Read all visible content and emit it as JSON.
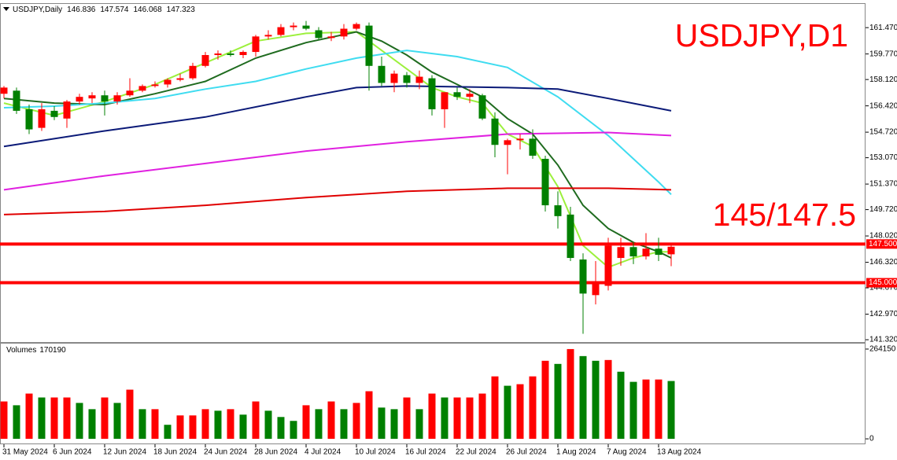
{
  "chart_data": {
    "type": "candlestick",
    "symbol": "USDJPY,Daily",
    "title": "USDJPY,D1",
    "annotation": "145/147.5",
    "categories": [
      "31 May 2024",
      null,
      null,
      null,
      "6 Jun 2024",
      null,
      null,
      null,
      "12 Jun 2024",
      null,
      null,
      null,
      "18 Jun 2024",
      null,
      null,
      null,
      "24 Jun 2024",
      null,
      null,
      null,
      "28 Jun 2024",
      null,
      null,
      null,
      "4 Jul 2024",
      null,
      null,
      null,
      "10 Jul 2024",
      null,
      null,
      null,
      "16 Jul 2024",
      null,
      null,
      null,
      "22 Jul 2024",
      null,
      null,
      null,
      "26 Jul 2024",
      null,
      null,
      null,
      "1 Aug 2024",
      null,
      null,
      null,
      "7 Aug 2024",
      null,
      null,
      null,
      "13 Aug 2024",
      null
    ],
    "open": [
      157.2,
      157.4,
      156.2,
      155.0,
      156.1,
      155.6,
      156.7,
      156.9,
      157.1,
      156.7,
      157.1,
      157.4,
      157.7,
      157.8,
      158.1,
      158.2,
      159.0,
      159.7,
      159.8,
      159.7,
      159.9,
      160.9,
      161.0,
      161.5,
      161.6,
      161.3,
      160.8,
      160.9,
      161.4,
      161.6,
      159.0,
      157.9,
      158.4,
      157.9,
      158.2,
      156.2,
      157.3,
      157.0,
      157.1,
      155.6,
      153.9,
      154.2,
      154.3,
      153.0,
      150.0,
      149.4,
      146.5,
      144.2,
      144.8,
      146.6,
      147.3,
      146.7,
      147.2,
      146.836
    ],
    "high": [
      157.7,
      157.6,
      156.5,
      156.6,
      156.4,
      156.8,
      157.2,
      157.3,
      157.4,
      157.3,
      158.2,
      157.8,
      158.0,
      158.2,
      158.5,
      159.2,
      159.9,
      160.0,
      160.0,
      160.0,
      161.0,
      161.3,
      161.7,
      161.8,
      161.9,
      161.5,
      161.2,
      161.7,
      161.8,
      161.8,
      159.6,
      158.7,
      158.6,
      158.7,
      158.4,
      157.3,
      157.6,
      157.5,
      157.2,
      156.0,
      154.3,
      154.6,
      154.9,
      153.2,
      150.9,
      149.9,
      146.9,
      146.4,
      147.9,
      147.9,
      147.6,
      148.2,
      147.9,
      147.574
    ],
    "low": [
      156.9,
      155.9,
      154.6,
      154.8,
      155.5,
      155.0,
      156.5,
      156.6,
      155.8,
      156.5,
      157.0,
      157.3,
      157.6,
      157.6,
      158.0,
      158.1,
      158.9,
      159.4,
      159.6,
      159.5,
      159.6,
      160.7,
      160.9,
      161.3,
      161.3,
      160.7,
      160.6,
      160.7,
      161.3,
      157.4,
      157.7,
      157.3,
      157.6,
      157.5,
      155.8,
      155.0,
      156.8,
      156.6,
      155.5,
      153.1,
      152.0,
      153.6,
      153.0,
      149.6,
      148.5,
      146.4,
      141.7,
      143.6,
      144.5,
      146.1,
      146.2,
      146.5,
      146.4,
      146.068
    ],
    "close": [
      157.6,
      156.1,
      154.9,
      156.2,
      155.7,
      156.7,
      157.0,
      157.1,
      156.7,
      157.1,
      157.4,
      157.7,
      157.8,
      158.1,
      158.2,
      159.0,
      159.7,
      159.8,
      159.7,
      159.9,
      160.9,
      161.0,
      161.5,
      161.6,
      161.4,
      160.8,
      160.9,
      161.4,
      161.7,
      159.0,
      157.9,
      158.5,
      157.9,
      158.3,
      156.2,
      157.3,
      157.0,
      157.2,
      155.6,
      153.9,
      154.2,
      154.3,
      153.2,
      150.0,
      149.3,
      146.6,
      144.3,
      145.0,
      147.4,
      147.3,
      146.7,
      147.2,
      146.8,
      147.323
    ],
    "up_color": "#ff0000",
    "down_color": "#008000",
    "ylim": [
      141.17,
      163.0
    ],
    "yticks": [
      {
        "value": 161.47,
        "label": "161.470"
      },
      {
        "value": 159.77,
        "label": "159.770"
      },
      {
        "value": 158.12,
        "label": "158.120"
      },
      {
        "value": 156.42,
        "label": "156.420"
      },
      {
        "value": 154.72,
        "label": "154.720"
      },
      {
        "value": 153.07,
        "label": "153.070"
      },
      {
        "value": 151.37,
        "label": "151.370"
      },
      {
        "value": 149.72,
        "label": "149.720"
      },
      {
        "value": 148.02,
        "label": "148.020"
      },
      {
        "value": 146.32,
        "label": "146.320"
      },
      {
        "value": 144.67,
        "label": "144.670"
      },
      {
        "value": 142.97,
        "label": "142.970"
      },
      {
        "value": 141.32,
        "label": "141.320"
      }
    ],
    "levels": [
      {
        "value": 147.5,
        "label": "147.500"
      },
      {
        "value": 145.0,
        "label": "145.000"
      }
    ],
    "level_color": "#ff0000",
    "moving_averages": [
      {
        "color": "#9cf03c",
        "x": [
          0,
          4,
          8,
          12,
          16,
          20,
          24,
          28,
          30,
          32,
          34,
          36,
          38,
          40,
          42,
          44,
          46,
          48,
          50,
          52,
          53
        ],
        "values": [
          156.6,
          155.8,
          156.7,
          157.8,
          159.2,
          160.6,
          161.1,
          161.2,
          160.0,
          158.8,
          157.6,
          157.0,
          156.6,
          154.6,
          153.8,
          151.2,
          147.4,
          146.0,
          146.6,
          147.0,
          147.0
        ]
      },
      {
        "color": "#1f6b1f",
        "x": [
          0,
          4,
          8,
          12,
          16,
          20,
          24,
          28,
          30,
          32,
          34,
          36,
          38,
          40,
          42,
          44,
          46,
          48,
          50,
          52,
          53
        ],
        "values": [
          156.9,
          156.6,
          156.5,
          157.2,
          158.0,
          159.5,
          160.5,
          161.2,
          160.6,
          159.7,
          158.6,
          157.8,
          157.0,
          155.6,
          154.6,
          152.6,
          150.0,
          148.5,
          147.6,
          147.0,
          146.6
        ]
      },
      {
        "color": "#3fdcf0",
        "x": [
          0,
          4,
          8,
          12,
          16,
          20,
          24,
          28,
          32,
          36,
          40,
          44,
          48,
          50,
          52,
          53
        ],
        "values": [
          156.3,
          156.4,
          156.6,
          156.9,
          157.5,
          158.0,
          158.8,
          159.5,
          160.0,
          159.6,
          158.9,
          157.0,
          154.5,
          153.0,
          151.5,
          150.7
        ]
      },
      {
        "color": "#0b1a78",
        "x": [
          0,
          8,
          16,
          24,
          28,
          32,
          40,
          44,
          48,
          53
        ],
        "values": [
          153.8,
          154.8,
          155.7,
          157.0,
          157.6,
          157.7,
          157.6,
          157.5,
          156.9,
          156.1
        ]
      },
      {
        "color": "#e020e0",
        "x": [
          0,
          8,
          16,
          24,
          32,
          40,
          48,
          53
        ],
        "values": [
          151.0,
          151.9,
          152.7,
          153.5,
          154.1,
          154.6,
          154.7,
          154.5
        ]
      },
      {
        "color": "#e00000",
        "x": [
          0,
          8,
          16,
          24,
          32,
          40,
          48,
          53
        ],
        "values": [
          149.4,
          149.6,
          150.0,
          150.5,
          150.9,
          151.1,
          151.1,
          151.0
        ]
      }
    ],
    "volume": {
      "label": "Volumes",
      "values": [
        110000,
        98800,
        133200,
        121700,
        121700,
        121700,
        105700,
        87300,
        121700,
        105700,
        144700,
        87300,
        87300,
        41300,
        68900,
        68900,
        87300,
        82700,
        87300,
        71200,
        110000,
        82700,
        64300,
        52800,
        98800,
        87300,
        110000,
        87300,
        105700,
        140100,
        92000,
        87300,
        121700,
        87300,
        133200,
        121700,
        121700,
        121700,
        133200,
        183800,
        156200,
        160800,
        183800,
        229700,
        220500,
        264150,
        243500,
        229700,
        232000,
        197500,
        167700,
        174600,
        174600,
        170190
      ],
      "ylim": [
        -16000,
        280200
      ],
      "yticks": [
        264150,
        0
      ]
    }
  }
}
